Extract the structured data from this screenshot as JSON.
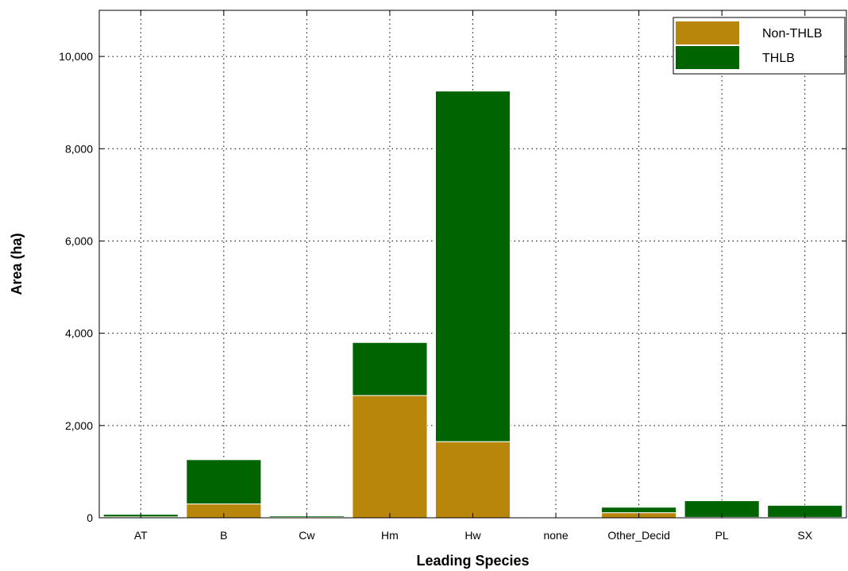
{
  "chart_data": {
    "type": "bar",
    "stacked": true,
    "categories": [
      "AT",
      "B",
      "Cw",
      "Hm",
      "Hw",
      "none",
      "Other_Decid",
      "PL",
      "SX"
    ],
    "series": [
      {
        "name": "Non-THLB",
        "values": [
          20,
          300,
          10,
          2650,
          1650,
          15,
          110,
          10,
          10
        ],
        "color": "#b8860b"
      },
      {
        "name": "THLB",
        "values": [
          55,
          960,
          30,
          1150,
          7600,
          0,
          120,
          360,
          260
        ],
        "color": "#006400"
      }
    ],
    "xlabel": "Leading Species",
    "ylabel": "Area (ha)",
    "ylim": [
      0,
      11000
    ],
    "yticks": [
      0,
      2000,
      4000,
      6000,
      8000,
      10000
    ],
    "ytick_labels": [
      "0",
      "2,000",
      "4,000",
      "6,000",
      "8,000",
      "10,000"
    ],
    "grid": true,
    "grid_style": "dotted",
    "legend_position": "top-right"
  }
}
